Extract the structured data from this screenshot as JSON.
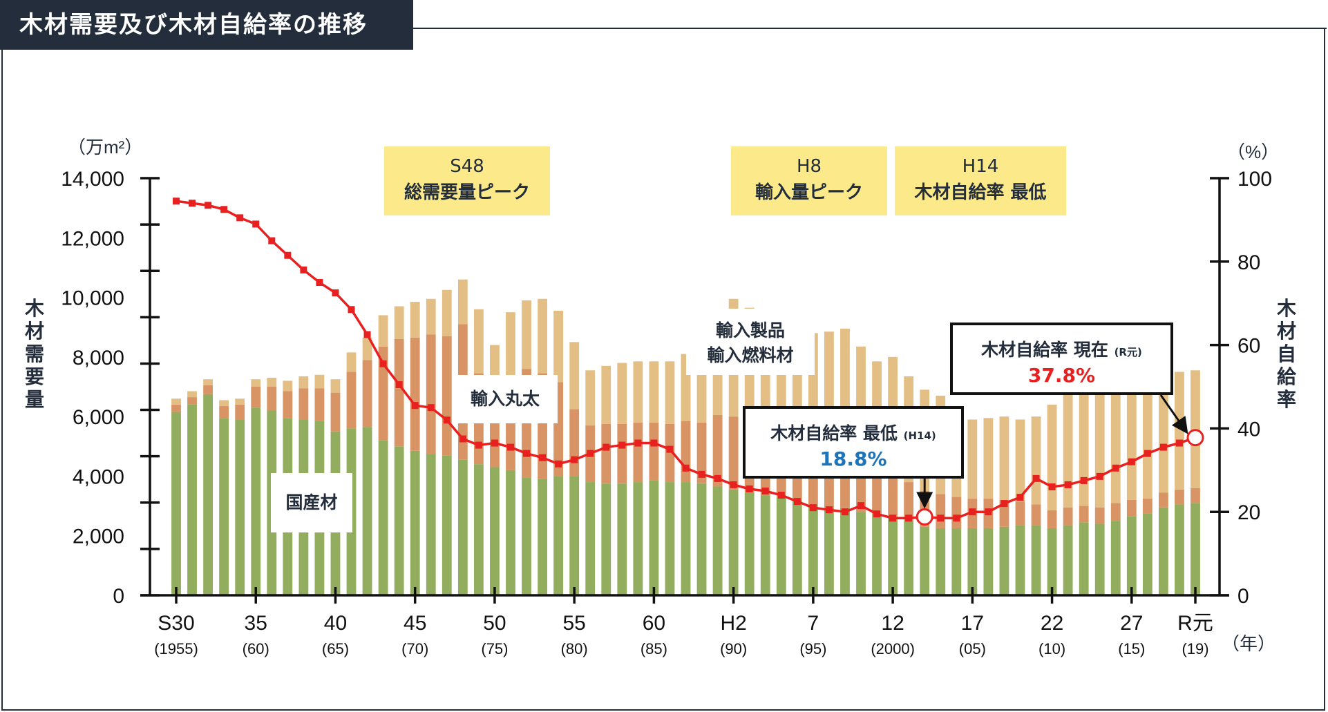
{
  "title": "木材需要及び木材自給率の推移",
  "chart_data": {
    "type": "bar+line",
    "title": "木材需要及び木材自給率の推移",
    "left_axis": {
      "label": "木材需要量",
      "unit": "（万m²）",
      "ticks": [
        "14,000",
        "12,000",
        "10,000",
        "8,000",
        "6,000",
        "4,000",
        "2,000",
        "0"
      ],
      "ylim": [
        0,
        14000
      ]
    },
    "right_axis": {
      "label": "木材自給率",
      "unit": "（%）",
      "ticks": [
        "100",
        "80",
        "60",
        "40",
        "20",
        "0"
      ],
      "ylim": [
        0,
        100
      ]
    },
    "x_unit": "（年）",
    "x_ticks": [
      {
        "year": 1955,
        "label": "S30",
        "sub": "(1955)"
      },
      {
        "year": 1960,
        "label": "35",
        "sub": "(60)"
      },
      {
        "year": 1965,
        "label": "40",
        "sub": "(65)"
      },
      {
        "year": 1970,
        "label": "45",
        "sub": "(70)"
      },
      {
        "year": 1975,
        "label": "50",
        "sub": "(75)"
      },
      {
        "year": 1980,
        "label": "55",
        "sub": "(80)"
      },
      {
        "year": 1985,
        "label": "60",
        "sub": "(85)"
      },
      {
        "year": 1990,
        "label": "H2",
        "sub": "(90)"
      },
      {
        "year": 1995,
        "label": "7",
        "sub": "(95)"
      },
      {
        "year": 2000,
        "label": "12",
        "sub": "(2000)"
      },
      {
        "year": 2005,
        "label": "17",
        "sub": "(05)"
      },
      {
        "year": 2010,
        "label": "22",
        "sub": "(10)"
      },
      {
        "year": 2015,
        "label": "27",
        "sub": "(15)"
      },
      {
        "year": 2019,
        "label": "R元",
        "sub": "(19)"
      }
    ],
    "years": [
      1955,
      1956,
      1957,
      1958,
      1959,
      1960,
      1961,
      1962,
      1963,
      1964,
      1965,
      1966,
      1967,
      1968,
      1969,
      1970,
      1971,
      1972,
      1973,
      1974,
      1975,
      1976,
      1977,
      1978,
      1979,
      1980,
      1981,
      1982,
      1983,
      1984,
      1985,
      1986,
      1987,
      1988,
      1989,
      1990,
      1991,
      1992,
      1993,
      1994,
      1995,
      1996,
      1997,
      1998,
      1999,
      2000,
      2001,
      2002,
      2003,
      2004,
      2005,
      2006,
      2007,
      2008,
      2009,
      2010,
      2011,
      2012,
      2013,
      2014,
      2015,
      2016,
      2017,
      2018,
      2019
    ],
    "series": [
      {
        "name": "国産材",
        "color": "#92ad5e",
        "values": [
          6150,
          6400,
          6750,
          5950,
          5900,
          6300,
          6200,
          5950,
          5900,
          5850,
          5500,
          5600,
          5650,
          5200,
          5000,
          4850,
          4750,
          4700,
          4550,
          4400,
          4300,
          4200,
          3950,
          3900,
          4000,
          4000,
          3800,
          3750,
          3750,
          3800,
          3850,
          3800,
          3800,
          3750,
          3650,
          3550,
          3450,
          3350,
          3300,
          3200,
          3050,
          2950,
          2950,
          2800,
          2750,
          2650,
          2500,
          2300,
          2250,
          2250,
          2250,
          2250,
          2300,
          2350,
          2350,
          2250,
          2350,
          2450,
          2400,
          2500,
          2650,
          2750,
          2950,
          3050,
          3100
        ]
      },
      {
        "name": "輸入丸太",
        "color": "#d99466",
        "values": [
          250,
          250,
          300,
          400,
          500,
          700,
          800,
          900,
          1050,
          1100,
          1300,
          1900,
          2250,
          3150,
          3600,
          3800,
          4000,
          4000,
          4550,
          3050,
          2400,
          3150,
          3650,
          3550,
          3150,
          2250,
          1900,
          2000,
          2000,
          2000,
          1950,
          1950,
          2050,
          2050,
          2400,
          2450,
          2400,
          2300,
          2300,
          2300,
          2100,
          2000,
          1900,
          1700,
          1550,
          1400,
          1300,
          1200,
          1150,
          1050,
          1000,
          1000,
          900,
          800,
          700,
          600,
          600,
          550,
          550,
          600,
          550,
          500,
          500,
          500,
          500
        ]
      },
      {
        "name": "輸入製品・輸入燃料材",
        "color": "#e3bf85",
        "values": [
          200,
          200,
          200,
          200,
          200,
          250,
          300,
          350,
          400,
          450,
          450,
          650,
          750,
          1050,
          1100,
          1200,
          1200,
          1550,
          1500,
          2150,
          1700,
          2150,
          2300,
          2500,
          2400,
          2250,
          1850,
          1950,
          2050,
          2050,
          2050,
          2100,
          2250,
          3250,
          3550,
          3950,
          3800,
          3700,
          3300,
          3350,
          3650,
          3900,
          4100,
          3850,
          3550,
          3950,
          3550,
          3400,
          3300,
          2750,
          2650,
          2700,
          2800,
          2750,
          2950,
          3550,
          3950,
          3850,
          3950,
          3850,
          3750,
          3600,
          3850,
          3950,
          3950
        ]
      }
    ],
    "self_sufficiency": {
      "name": "木材自給率",
      "unit": "%",
      "color": "#e8201f",
      "values": [
        94.5,
        94.0,
        93.5,
        92.5,
        90.5,
        89.0,
        85.0,
        81.5,
        78.0,
        75.0,
        72.5,
        68.5,
        62.5,
        55.5,
        50.5,
        45.5,
        45.0,
        42.0,
        37.5,
        36.0,
        36.5,
        35.5,
        34.0,
        33.0,
        31.5,
        32.5,
        34.0,
        35.5,
        36.0,
        36.5,
        36.5,
        35.0,
        30.5,
        29.0,
        28.0,
        26.5,
        25.5,
        25.0,
        24.0,
        22.5,
        21.0,
        20.5,
        20.0,
        21.5,
        19.5,
        18.5,
        18.5,
        18.8,
        18.5,
        18.5,
        20.0,
        20.0,
        22.0,
        23.5,
        28.0,
        26.0,
        26.5,
        27.5,
        28.5,
        30.5,
        32.0,
        34.0,
        35.5,
        36.5,
        37.8
      ]
    }
  },
  "peak_callouts": [
    {
      "era": "S48",
      "text": "総需要量ピーク"
    },
    {
      "era": "H8",
      "text": "輸入量ピーク"
    },
    {
      "era": "H14",
      "text": "木材自給率 最低"
    }
  ],
  "series_labels": {
    "domestic": "国産材",
    "imported_logs": "輸入丸太",
    "imported_products_line1": "輸入製品",
    "imported_products_line2": "輸入燃料材"
  },
  "annotations": {
    "lowest": {
      "label": "木材自給率 最低",
      "era": "(H14)",
      "value": "18.8%",
      "color": "#1f73b7"
    },
    "current": {
      "label": "木材自給率 現在",
      "era": "(R元)",
      "value": "37.8%",
      "color": "#e8201f"
    }
  }
}
